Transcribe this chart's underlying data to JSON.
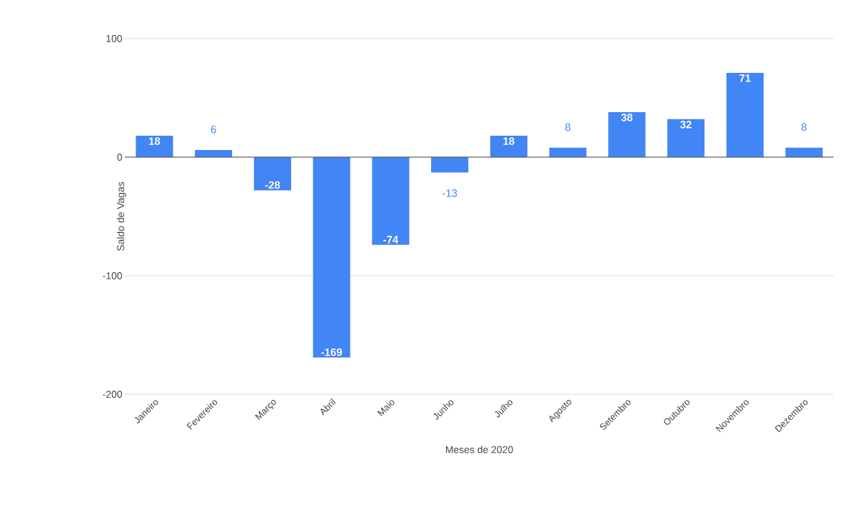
{
  "chart_data": {
    "type": "bar",
    "xlabel": "Meses de 2020",
    "ylabel": "Saldo de Vagas",
    "categories": [
      "Janeiro",
      "Fevereiro",
      "Março",
      "Abril",
      "Maio",
      "Junho",
      "Julho",
      "Agosto",
      "Setembro",
      "Outubro",
      "Novembro",
      "Dezembro"
    ],
    "values": [
      18,
      6,
      -28,
      -169,
      -74,
      -13,
      18,
      8,
      38,
      32,
      71,
      8
    ],
    "color": "#4285f4",
    "ylim": [
      -200,
      100
    ],
    "yticks": [
      -200,
      -100,
      0,
      100
    ],
    "grid": "y",
    "data_labels": true
  }
}
